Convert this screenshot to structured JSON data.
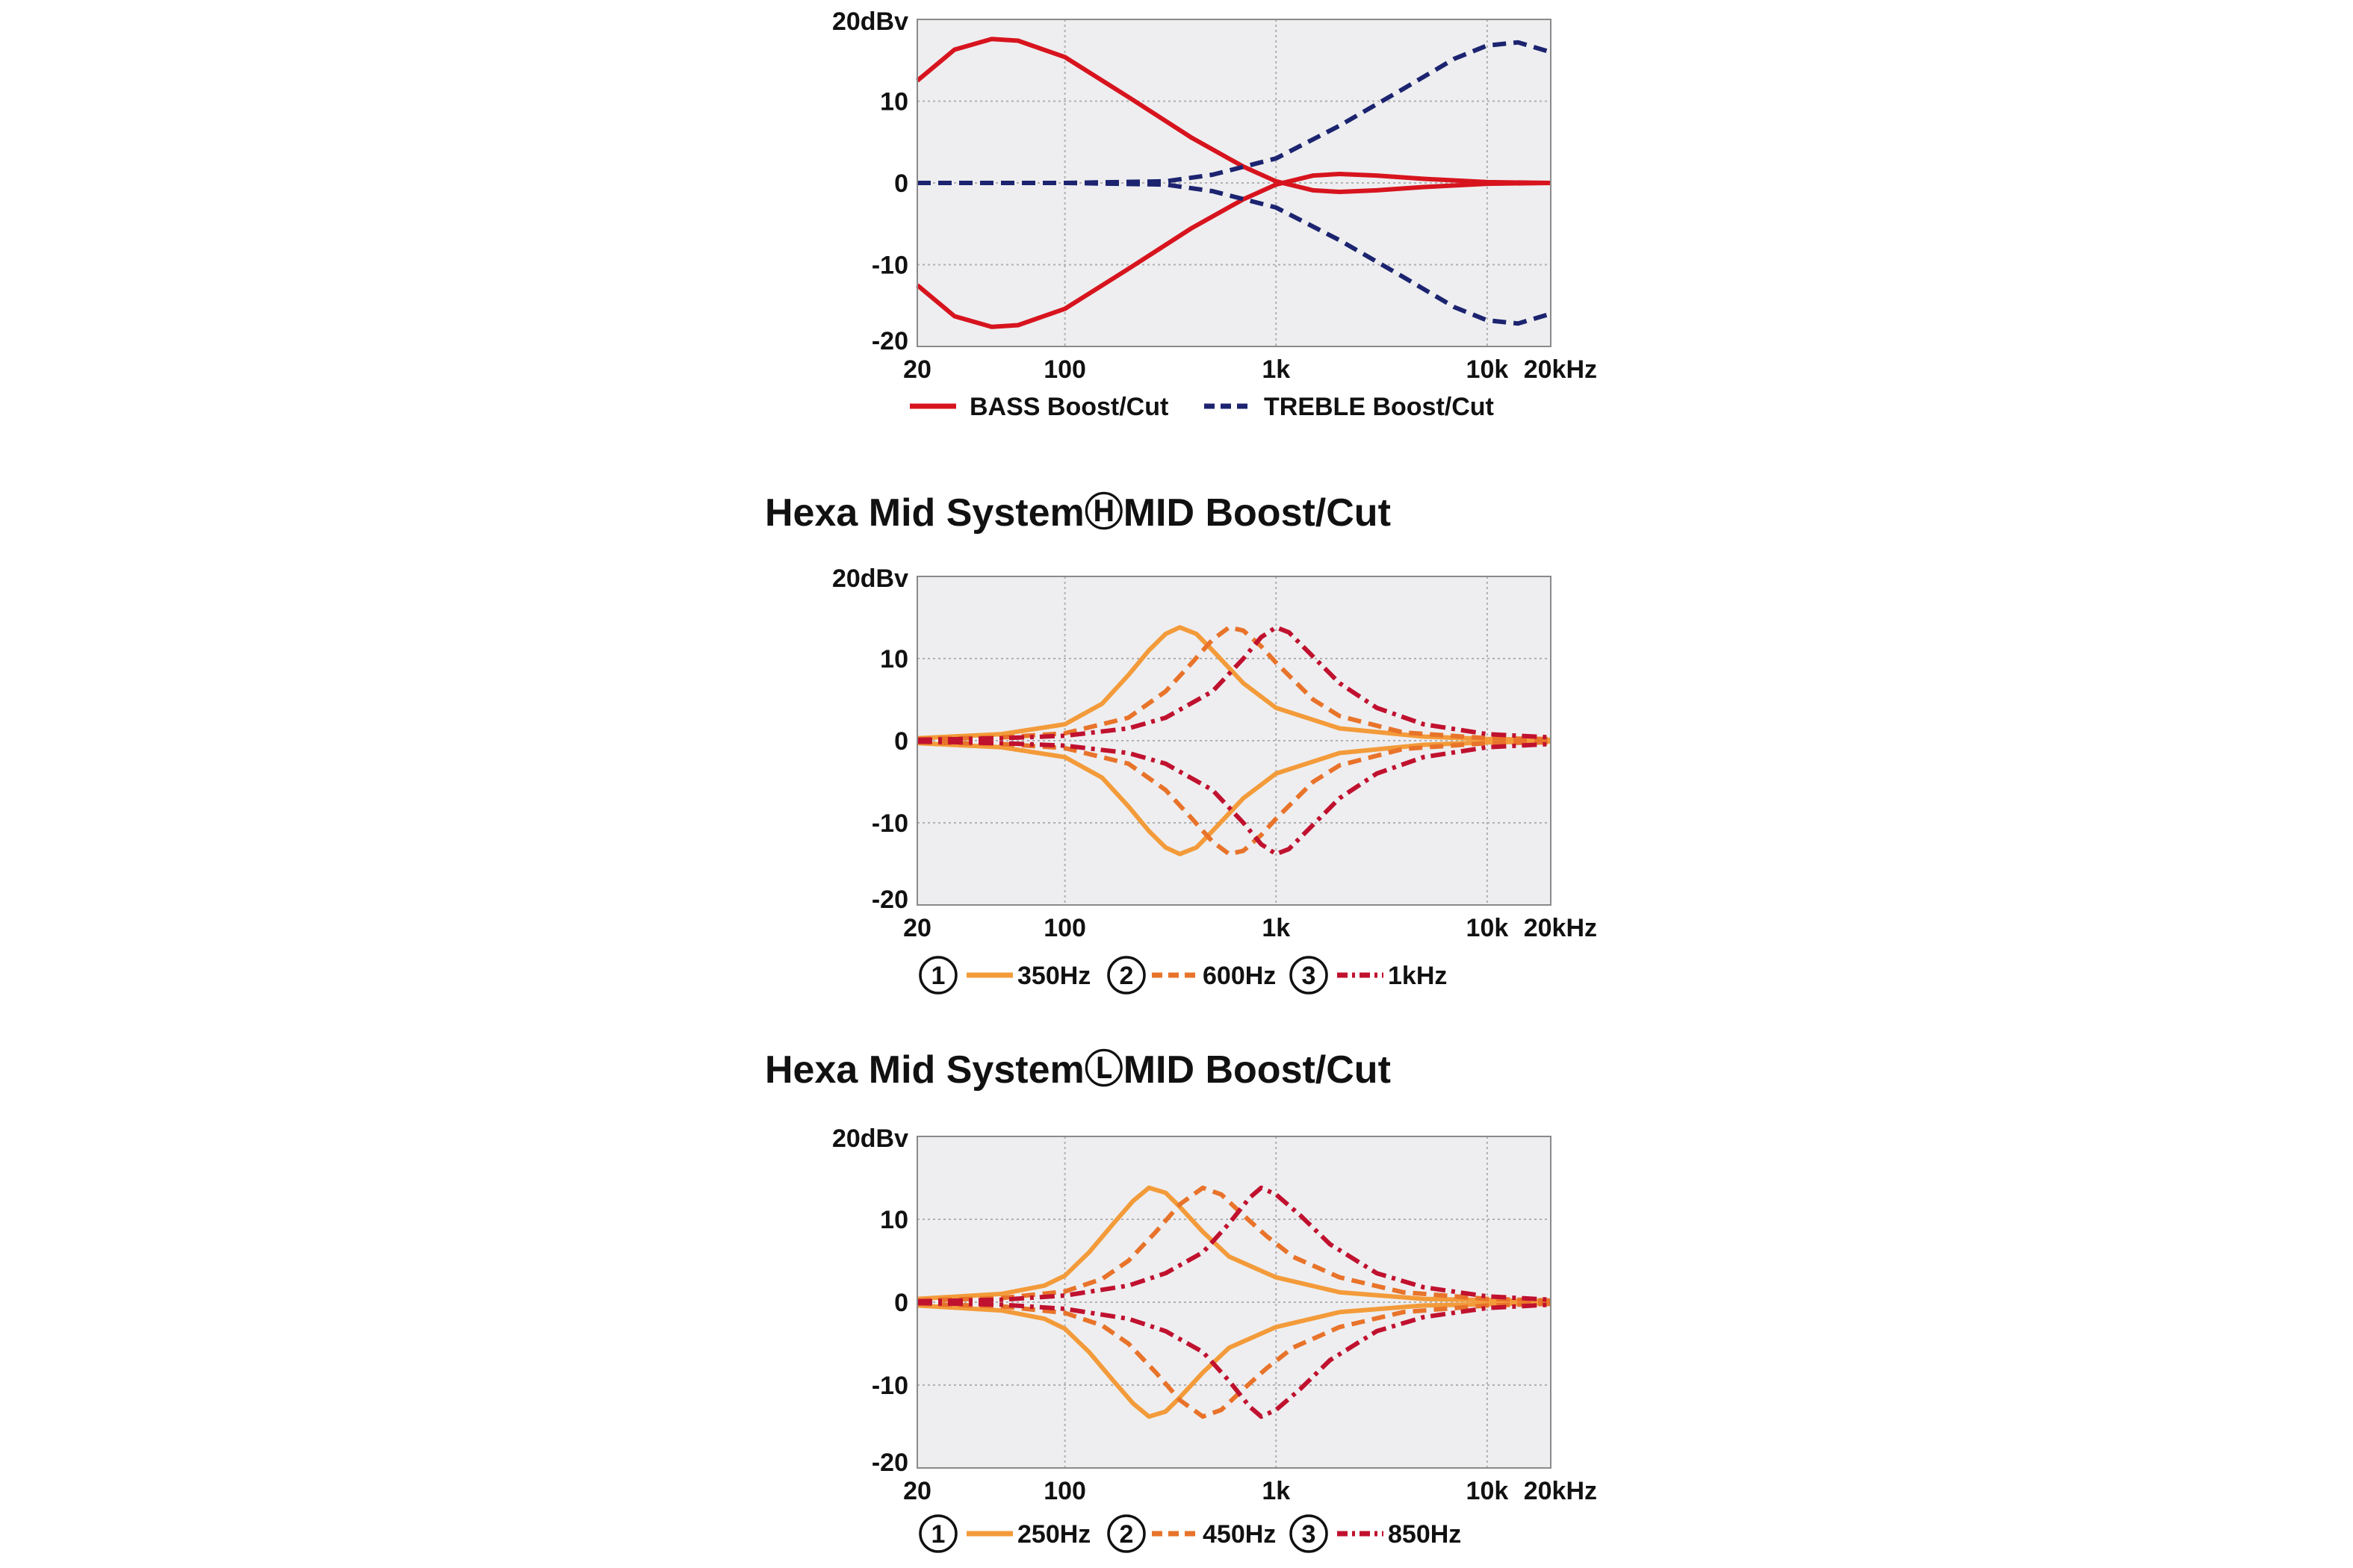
{
  "colors": {
    "plot_bg": "#EEEEF0",
    "grid": "#B0B0B0",
    "frame": "#8A8A8A",
    "bass": "#D7141E",
    "treble": "#1C2470",
    "mid1": "#F39B3A",
    "mid2": "#E8732A",
    "mid3": "#C0112F"
  },
  "chart_data": [
    {
      "type": "line",
      "title": "",
      "x_scale": "log",
      "xlim": [
        20,
        20000
      ],
      "ylim": [
        -20,
        20
      ],
      "x_ticks": [
        {
          "value": 20,
          "label": "20"
        },
        {
          "value": 100,
          "label": "100"
        },
        {
          "value": 1000,
          "label": "1k"
        },
        {
          "value": 10000,
          "label": "10k"
        },
        {
          "value": 20000,
          "label": "20kHz"
        }
      ],
      "y_ticks": [
        {
          "value": 20,
          "label": "20dBv"
        },
        {
          "value": 10,
          "label": "10"
        },
        {
          "value": 0,
          "label": "0"
        },
        {
          "value": -10,
          "label": "-10"
        },
        {
          "value": -20,
          "label": "-20"
        }
      ],
      "grid": true,
      "legend_position": "bottom",
      "legend": [
        {
          "number": "",
          "label": "BASS Boost/Cut",
          "color": "bass",
          "dash": "solid"
        },
        {
          "number": "",
          "label": "TREBLE Boost/Cut",
          "color": "treble",
          "dash": "dash"
        }
      ],
      "series": [
        {
          "name": "BASS Boost/Cut",
          "color": "bass",
          "dash": "solid",
          "x": [
            20,
            30,
            45,
            60,
            100,
            200,
            400,
            700,
            1000,
            1500,
            2000,
            3000,
            5000,
            10000,
            20000
          ],
          "y": [
            12.5,
            16.3,
            17.6,
            17.4,
            15.4,
            10.5,
            5.5,
            2.0,
            0.2,
            -0.9,
            -1.1,
            -0.9,
            -0.5,
            -0.1,
            0
          ]
        },
        {
          "name": "BASS Boost/Cut",
          "color": "bass",
          "dash": "solid",
          "x": [
            20,
            30,
            45,
            60,
            100,
            200,
            400,
            700,
            1000,
            1500,
            2000,
            3000,
            5000,
            10000,
            20000
          ],
          "y": [
            -12.5,
            -16.3,
            -17.6,
            -17.4,
            -15.4,
            -10.5,
            -5.5,
            -2.0,
            -0.2,
            0.9,
            1.1,
            0.9,
            0.5,
            0.1,
            0
          ]
        },
        {
          "name": "TREBLE Boost/Cut",
          "color": "treble",
          "dash": "dash",
          "x": [
            20,
            100,
            300,
            500,
            1000,
            2000,
            4000,
            7000,
            10000,
            14000,
            20000
          ],
          "y": [
            0,
            0,
            0.2,
            1.0,
            3.0,
            7.0,
            11.5,
            15.2,
            16.8,
            17.2,
            16.0
          ]
        },
        {
          "name": "TREBLE Boost/Cut",
          "color": "treble",
          "dash": "dash",
          "x": [
            20,
            100,
            300,
            500,
            1000,
            2000,
            4000,
            7000,
            10000,
            14000,
            20000
          ],
          "y": [
            0,
            0,
            -0.2,
            -1.0,
            -3.0,
            -7.0,
            -11.5,
            -15.2,
            -16.8,
            -17.2,
            -16.0
          ]
        }
      ]
    },
    {
      "type": "line",
      "title": "Hexa Mid SystemⒽMID Boost/Cut",
      "x_scale": "log",
      "xlim": [
        20,
        20000
      ],
      "ylim": [
        -20,
        20
      ],
      "x_ticks": [
        {
          "value": 20,
          "label": "20"
        },
        {
          "value": 100,
          "label": "100"
        },
        {
          "value": 1000,
          "label": "1k"
        },
        {
          "value": 10000,
          "label": "10k"
        },
        {
          "value": 20000,
          "label": "20kHz"
        }
      ],
      "y_ticks": [
        {
          "value": 20,
          "label": "20dBv"
        },
        {
          "value": 10,
          "label": "10"
        },
        {
          "value": 0,
          "label": "0"
        },
        {
          "value": -10,
          "label": "-10"
        },
        {
          "value": -20,
          "label": "-20"
        }
      ],
      "grid": true,
      "legend_position": "bottom",
      "legend": [
        {
          "number": "1",
          "label": "350Hz",
          "color": "mid1",
          "dash": "solid"
        },
        {
          "number": "2",
          "label": "600Hz",
          "color": "mid2",
          "dash": "dash"
        },
        {
          "number": "3",
          "label": "1kHz",
          "color": "mid3",
          "dash": "dashdot"
        }
      ],
      "series": [
        {
          "name": "350Hz",
          "color": "mid1",
          "dash": "solid",
          "x": [
            20,
            50,
            100,
            150,
            200,
            250,
            300,
            350,
            420,
            500,
            700,
            1000,
            2000,
            5000,
            10000,
            20000
          ],
          "y": [
            0.3,
            0.8,
            2.0,
            4.5,
            8.0,
            11.0,
            13.0,
            13.8,
            13.0,
            11.0,
            7.0,
            4.0,
            1.5,
            0.5,
            0.2,
            0.1
          ]
        },
        {
          "name": "350Hz",
          "color": "mid1",
          "dash": "solid",
          "x": [
            20,
            50,
            100,
            150,
            200,
            250,
            300,
            350,
            420,
            500,
            700,
            1000,
            2000,
            5000,
            10000,
            20000
          ],
          "y": [
            -0.3,
            -0.8,
            -2.0,
            -4.5,
            -8.0,
            -11.0,
            -13.0,
            -13.8,
            -13.0,
            -11.0,
            -7.0,
            -4.0,
            -1.5,
            -0.5,
            -0.2,
            -0.1
          ]
        },
        {
          "name": "600Hz",
          "color": "mid2",
          "dash": "dash",
          "x": [
            20,
            50,
            100,
            200,
            300,
            400,
            500,
            600,
            700,
            850,
            1000,
            1500,
            2000,
            4000,
            10000,
            20000
          ],
          "y": [
            0.2,
            0.4,
            0.9,
            2.8,
            6.0,
            9.5,
            12.3,
            13.8,
            13.4,
            11.5,
            9.5,
            5.0,
            3.0,
            1.0,
            0.3,
            0.2
          ]
        },
        {
          "name": "600Hz",
          "color": "mid2",
          "dash": "dash",
          "x": [
            20,
            50,
            100,
            200,
            300,
            400,
            500,
            600,
            700,
            850,
            1000,
            1500,
            2000,
            4000,
            10000,
            20000
          ],
          "y": [
            -0.2,
            -0.4,
            -0.9,
            -2.8,
            -6.0,
            -9.5,
            -12.3,
            -13.8,
            -13.4,
            -11.5,
            -9.5,
            -5.0,
            -3.0,
            -1.0,
            -0.3,
            -0.2
          ]
        },
        {
          "name": "1kHz",
          "color": "mid3",
          "dash": "dashdot",
          "x": [
            20,
            50,
            100,
            200,
            300,
            500,
            700,
            850,
            1000,
            1150,
            1400,
            2000,
            3000,
            5000,
            10000,
            20000
          ],
          "y": [
            0.1,
            0.3,
            0.6,
            1.5,
            2.8,
            6.0,
            10.0,
            12.6,
            13.8,
            13.2,
            11.0,
            7.0,
            4.0,
            2.0,
            0.8,
            0.4
          ]
        },
        {
          "name": "1kHz",
          "color": "mid3",
          "dash": "dashdot",
          "x": [
            20,
            50,
            100,
            200,
            300,
            500,
            700,
            850,
            1000,
            1150,
            1400,
            2000,
            3000,
            5000,
            10000,
            20000
          ],
          "y": [
            -0.1,
            -0.3,
            -0.6,
            -1.5,
            -2.8,
            -6.0,
            -10.0,
            -12.6,
            -13.8,
            -13.2,
            -11.0,
            -7.0,
            -4.0,
            -2.0,
            -0.8,
            -0.4
          ]
        }
      ]
    },
    {
      "type": "line",
      "title": "Hexa Mid SystemⓁMID Boost/Cut",
      "x_scale": "log",
      "xlim": [
        20,
        20000
      ],
      "ylim": [
        -20,
        20
      ],
      "x_ticks": [
        {
          "value": 20,
          "label": "20"
        },
        {
          "value": 100,
          "label": "100"
        },
        {
          "value": 1000,
          "label": "1k"
        },
        {
          "value": 10000,
          "label": "10k"
        },
        {
          "value": 20000,
          "label": "20kHz"
        }
      ],
      "y_ticks": [
        {
          "value": 20,
          "label": "20dBv"
        },
        {
          "value": 10,
          "label": "10"
        },
        {
          "value": 0,
          "label": "0"
        },
        {
          "value": -10,
          "label": "-10"
        },
        {
          "value": -20,
          "label": "-20"
        }
      ],
      "grid": true,
      "legend_position": "bottom",
      "legend": [
        {
          "number": "1",
          "label": "250Hz",
          "color": "mid1",
          "dash": "solid"
        },
        {
          "number": "2",
          "label": "450Hz",
          "color": "mid2",
          "dash": "dash"
        },
        {
          "number": "3",
          "label": "850Hz",
          "color": "mid3",
          "dash": "dashdot"
        }
      ],
      "series": [
        {
          "name": "250Hz",
          "color": "mid1",
          "dash": "solid",
          "x": [
            20,
            50,
            80,
            100,
            130,
            170,
            210,
            250,
            300,
            350,
            450,
            600,
            1000,
            2000,
            5000,
            20000
          ],
          "y": [
            0.4,
            1.0,
            2.0,
            3.2,
            6.0,
            9.5,
            12.2,
            13.8,
            13.2,
            11.5,
            8.5,
            5.5,
            3.0,
            1.2,
            0.4,
            0.1
          ]
        },
        {
          "name": "250Hz",
          "color": "mid1",
          "dash": "solid",
          "x": [
            20,
            50,
            80,
            100,
            130,
            170,
            210,
            250,
            300,
            350,
            450,
            600,
            1000,
            2000,
            5000,
            20000
          ],
          "y": [
            -0.4,
            -1.0,
            -2.0,
            -3.2,
            -6.0,
            -9.5,
            -12.2,
            -13.8,
            -13.2,
            -11.5,
            -8.5,
            -5.5,
            -3.0,
            -1.2,
            -0.4,
            -0.1
          ]
        },
        {
          "name": "450Hz",
          "color": "mid2",
          "dash": "dash",
          "x": [
            20,
            50,
            100,
            150,
            200,
            270,
            350,
            450,
            550,
            700,
            900,
            1200,
            2000,
            4000,
            10000,
            20000
          ],
          "y": [
            0.2,
            0.5,
            1.3,
            2.8,
            5.0,
            8.5,
            11.8,
            13.8,
            13.0,
            10.5,
            8.0,
            5.5,
            3.0,
            1.2,
            0.4,
            0.2
          ]
        },
        {
          "name": "450Hz",
          "color": "mid2",
          "dash": "dash",
          "x": [
            20,
            50,
            100,
            150,
            200,
            270,
            350,
            450,
            550,
            700,
            900,
            1200,
            2000,
            4000,
            10000,
            20000
          ],
          "y": [
            -0.2,
            -0.5,
            -1.3,
            -2.8,
            -5.0,
            -8.5,
            -11.8,
            -13.8,
            -13.0,
            -10.5,
            -8.0,
            -5.5,
            -3.0,
            -1.2,
            -0.4,
            -0.2
          ]
        },
        {
          "name": "850Hz",
          "color": "mid3",
          "dash": "dashdot",
          "x": [
            20,
            50,
            100,
            200,
            300,
            450,
            600,
            750,
            850,
            1000,
            1300,
            1800,
            3000,
            5000,
            10000,
            20000
          ],
          "y": [
            0.1,
            0.3,
            0.8,
            2.0,
            3.5,
            6.0,
            9.5,
            12.6,
            13.8,
            13.0,
            10.5,
            7.0,
            3.5,
            1.8,
            0.7,
            0.3
          ]
        },
        {
          "name": "850Hz",
          "color": "mid3",
          "dash": "dashdot",
          "x": [
            20,
            50,
            100,
            200,
            300,
            450,
            600,
            750,
            850,
            1000,
            1300,
            1800,
            3000,
            5000,
            10000,
            20000
          ],
          "y": [
            -0.1,
            -0.3,
            -0.8,
            -2.0,
            -3.5,
            -6.0,
            -9.5,
            -12.6,
            -13.8,
            -13.0,
            -10.5,
            -7.0,
            -3.5,
            -1.8,
            -0.7,
            -0.3
          ]
        }
      ]
    }
  ]
}
